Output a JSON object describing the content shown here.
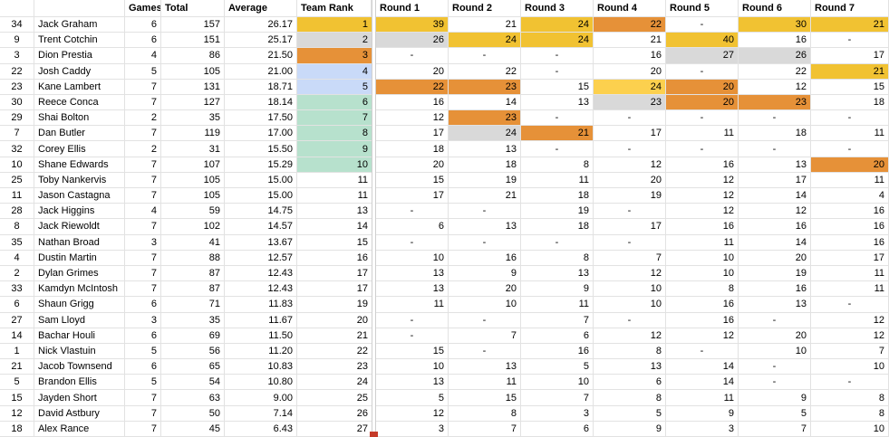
{
  "colors": {
    "gold": "#f1c232",
    "silver": "#d9d9d9",
    "bronze": "#e69138",
    "yellow": "#fcd04e",
    "blue": "#c9daf8",
    "green": "#b7e1cd"
  },
  "headers": [
    "",
    "",
    "Games",
    "Total",
    "Average",
    "Team Rank",
    "Round 1",
    "Round 2",
    "Round 3",
    "Round 4",
    "Round 5",
    "Round 6",
    "Round 7"
  ],
  "rows": [
    {
      "num": "34",
      "name": "Jack Graham",
      "games": "6",
      "total": "157",
      "avg": "26.17",
      "rank": "1",
      "rank_color": "gold",
      "rounds": [
        [
          "39",
          "gold"
        ],
        [
          "21",
          ""
        ],
        [
          "24",
          "gold"
        ],
        [
          "22",
          "bronze"
        ],
        [
          "-",
          ""
        ],
        [
          "30",
          "gold"
        ],
        [
          "21",
          "gold"
        ]
      ]
    },
    {
      "num": "9",
      "name": "Trent Cotchin",
      "games": "6",
      "total": "151",
      "avg": "25.17",
      "rank": "2",
      "rank_color": "silver",
      "rounds": [
        [
          "26",
          "silver"
        ],
        [
          "24",
          "gold"
        ],
        [
          "24",
          "gold"
        ],
        [
          "21",
          ""
        ],
        [
          "40",
          "gold"
        ],
        [
          "16",
          ""
        ],
        [
          "-",
          ""
        ]
      ]
    },
    {
      "num": "3",
      "name": "Dion Prestia",
      "games": "4",
      "total": "86",
      "avg": "21.50",
      "rank": "3",
      "rank_color": "bronze",
      "rounds": [
        [
          "-",
          ""
        ],
        [
          "-",
          ""
        ],
        [
          "-",
          ""
        ],
        [
          "16",
          ""
        ],
        [
          "27",
          "silver"
        ],
        [
          "26",
          "silver"
        ],
        [
          "17",
          ""
        ]
      ]
    },
    {
      "num": "22",
      "name": "Josh Caddy",
      "games": "5",
      "total": "105",
      "avg": "21.00",
      "rank": "4",
      "rank_color": "blue",
      "rounds": [
        [
          "20",
          ""
        ],
        [
          "22",
          ""
        ],
        [
          "-",
          ""
        ],
        [
          "20",
          ""
        ],
        [
          "-",
          ""
        ],
        [
          "22",
          ""
        ],
        [
          "21",
          "gold"
        ]
      ]
    },
    {
      "num": "23",
      "name": "Kane Lambert",
      "games": "7",
      "total": "131",
      "avg": "18.71",
      "rank": "5",
      "rank_color": "blue",
      "rounds": [
        [
          "22",
          "bronze"
        ],
        [
          "23",
          "bronze"
        ],
        [
          "15",
          ""
        ],
        [
          "24",
          "yellow"
        ],
        [
          "20",
          "bronze"
        ],
        [
          "12",
          ""
        ],
        [
          "15",
          ""
        ]
      ]
    },
    {
      "num": "30",
      "name": "Reece Conca",
      "games": "7",
      "total": "127",
      "avg": "18.14",
      "rank": "6",
      "rank_color": "green",
      "rounds": [
        [
          "16",
          ""
        ],
        [
          "14",
          ""
        ],
        [
          "13",
          ""
        ],
        [
          "23",
          "silver"
        ],
        [
          "20",
          "bronze"
        ],
        [
          "23",
          "bronze"
        ],
        [
          "18",
          ""
        ]
      ]
    },
    {
      "num": "29",
      "name": "Shai Bolton",
      "games": "2",
      "total": "35",
      "avg": "17.50",
      "rank": "7",
      "rank_color": "green",
      "rounds": [
        [
          "12",
          ""
        ],
        [
          "23",
          "bronze"
        ],
        [
          "-",
          ""
        ],
        [
          "-",
          ""
        ],
        [
          "-",
          ""
        ],
        [
          "-",
          ""
        ],
        [
          "-",
          ""
        ]
      ]
    },
    {
      "num": "7",
      "name": "Dan Butler",
      "games": "7",
      "total": "119",
      "avg": "17.00",
      "rank": "8",
      "rank_color": "green",
      "rounds": [
        [
          "17",
          ""
        ],
        [
          "24",
          "silver"
        ],
        [
          "21",
          "bronze"
        ],
        [
          "17",
          ""
        ],
        [
          "11",
          ""
        ],
        [
          "18",
          ""
        ],
        [
          "11",
          ""
        ]
      ]
    },
    {
      "num": "32",
      "name": "Corey Ellis",
      "games": "2",
      "total": "31",
      "avg": "15.50",
      "rank": "9",
      "rank_color": "green",
      "rounds": [
        [
          "18",
          ""
        ],
        [
          "13",
          ""
        ],
        [
          "-",
          ""
        ],
        [
          "-",
          ""
        ],
        [
          "-",
          ""
        ],
        [
          "-",
          ""
        ],
        [
          "-",
          ""
        ]
      ]
    },
    {
      "num": "10",
      "name": "Shane Edwards",
      "games": "7",
      "total": "107",
      "avg": "15.29",
      "rank": "10",
      "rank_color": "green",
      "rounds": [
        [
          "20",
          ""
        ],
        [
          "18",
          ""
        ],
        [
          "8",
          ""
        ],
        [
          "12",
          ""
        ],
        [
          "16",
          ""
        ],
        [
          "13",
          ""
        ],
        [
          "20",
          "bronze"
        ]
      ]
    },
    {
      "num": "25",
      "name": "Toby Nankervis",
      "games": "7",
      "total": "105",
      "avg": "15.00",
      "rank": "11",
      "rank_color": "",
      "rounds": [
        [
          "15",
          ""
        ],
        [
          "19",
          ""
        ],
        [
          "11",
          ""
        ],
        [
          "20",
          ""
        ],
        [
          "12",
          ""
        ],
        [
          "17",
          ""
        ],
        [
          "11",
          ""
        ]
      ]
    },
    {
      "num": "11",
      "name": "Jason Castagna",
      "games": "7",
      "total": "105",
      "avg": "15.00",
      "rank": "11",
      "rank_color": "",
      "rounds": [
        [
          "17",
          ""
        ],
        [
          "21",
          ""
        ],
        [
          "18",
          ""
        ],
        [
          "19",
          ""
        ],
        [
          "12",
          ""
        ],
        [
          "14",
          ""
        ],
        [
          "4",
          ""
        ]
      ]
    },
    {
      "num": "28",
      "name": "Jack Higgins",
      "games": "4",
      "total": "59",
      "avg": "14.75",
      "rank": "13",
      "rank_color": "",
      "rounds": [
        [
          "-",
          ""
        ],
        [
          "-",
          ""
        ],
        [
          "19",
          ""
        ],
        [
          "-",
          ""
        ],
        [
          "12",
          ""
        ],
        [
          "12",
          ""
        ],
        [
          "16",
          ""
        ]
      ]
    },
    {
      "num": "8",
      "name": "Jack Riewoldt",
      "games": "7",
      "total": "102",
      "avg": "14.57",
      "rank": "14",
      "rank_color": "",
      "rounds": [
        [
          "6",
          ""
        ],
        [
          "13",
          ""
        ],
        [
          "18",
          ""
        ],
        [
          "17",
          ""
        ],
        [
          "16",
          ""
        ],
        [
          "16",
          ""
        ],
        [
          "16",
          ""
        ]
      ]
    },
    {
      "num": "35",
      "name": "Nathan Broad",
      "games": "3",
      "total": "41",
      "avg": "13.67",
      "rank": "15",
      "rank_color": "",
      "rounds": [
        [
          "-",
          ""
        ],
        [
          "-",
          ""
        ],
        [
          "-",
          ""
        ],
        [
          "-",
          ""
        ],
        [
          "11",
          ""
        ],
        [
          "14",
          ""
        ],
        [
          "16",
          ""
        ]
      ]
    },
    {
      "num": "4",
      "name": "Dustin Martin",
      "games": "7",
      "total": "88",
      "avg": "12.57",
      "rank": "16",
      "rank_color": "",
      "rounds": [
        [
          "10",
          ""
        ],
        [
          "16",
          ""
        ],
        [
          "8",
          ""
        ],
        [
          "7",
          ""
        ],
        [
          "10",
          ""
        ],
        [
          "20",
          ""
        ],
        [
          "17",
          ""
        ]
      ]
    },
    {
      "num": "2",
      "name": "Dylan Grimes",
      "games": "7",
      "total": "87",
      "avg": "12.43",
      "rank": "17",
      "rank_color": "",
      "rounds": [
        [
          "13",
          ""
        ],
        [
          "9",
          ""
        ],
        [
          "13",
          ""
        ],
        [
          "12",
          ""
        ],
        [
          "10",
          ""
        ],
        [
          "19",
          ""
        ],
        [
          "11",
          ""
        ]
      ]
    },
    {
      "num": "33",
      "name": "Kamdyn McIntosh",
      "games": "7",
      "total": "87",
      "avg": "12.43",
      "rank": "17",
      "rank_color": "",
      "rounds": [
        [
          "13",
          ""
        ],
        [
          "20",
          ""
        ],
        [
          "9",
          ""
        ],
        [
          "10",
          ""
        ],
        [
          "8",
          ""
        ],
        [
          "16",
          ""
        ],
        [
          "11",
          ""
        ]
      ]
    },
    {
      "num": "6",
      "name": "Shaun Grigg",
      "games": "6",
      "total": "71",
      "avg": "11.83",
      "rank": "19",
      "rank_color": "",
      "rounds": [
        [
          "11",
          ""
        ],
        [
          "10",
          ""
        ],
        [
          "11",
          ""
        ],
        [
          "10",
          ""
        ],
        [
          "16",
          ""
        ],
        [
          "13",
          ""
        ],
        [
          "-",
          ""
        ]
      ]
    },
    {
      "num": "27",
      "name": "Sam Lloyd",
      "games": "3",
      "total": "35",
      "avg": "11.67",
      "rank": "20",
      "rank_color": "",
      "rounds": [
        [
          "-",
          ""
        ],
        [
          "-",
          ""
        ],
        [
          "7",
          ""
        ],
        [
          "-",
          ""
        ],
        [
          "16",
          ""
        ],
        [
          "-",
          ""
        ],
        [
          "12",
          ""
        ]
      ]
    },
    {
      "num": "14",
      "name": "Bachar Houli",
      "games": "6",
      "total": "69",
      "avg": "11.50",
      "rank": "21",
      "rank_color": "",
      "rounds": [
        [
          "-",
          ""
        ],
        [
          "7",
          ""
        ],
        [
          "6",
          ""
        ],
        [
          "12",
          ""
        ],
        [
          "12",
          ""
        ],
        [
          "20",
          ""
        ],
        [
          "12",
          ""
        ]
      ]
    },
    {
      "num": "1",
      "name": "Nick Vlastuin",
      "games": "5",
      "total": "56",
      "avg": "11.20",
      "rank": "22",
      "rank_color": "",
      "rounds": [
        [
          "15",
          ""
        ],
        [
          "-",
          ""
        ],
        [
          "16",
          ""
        ],
        [
          "8",
          ""
        ],
        [
          "-",
          ""
        ],
        [
          "10",
          ""
        ],
        [
          "7",
          ""
        ]
      ]
    },
    {
      "num": "21",
      "name": "Jacob Townsend",
      "games": "6",
      "total": "65",
      "avg": "10.83",
      "rank": "23",
      "rank_color": "",
      "rounds": [
        [
          "10",
          ""
        ],
        [
          "13",
          ""
        ],
        [
          "5",
          ""
        ],
        [
          "13",
          ""
        ],
        [
          "14",
          ""
        ],
        [
          "-",
          ""
        ],
        [
          "10",
          ""
        ]
      ]
    },
    {
      "num": "5",
      "name": "Brandon Ellis",
      "games": "5",
      "total": "54",
      "avg": "10.80",
      "rank": "24",
      "rank_color": "",
      "rounds": [
        [
          "13",
          ""
        ],
        [
          "11",
          ""
        ],
        [
          "10",
          ""
        ],
        [
          "6",
          ""
        ],
        [
          "14",
          ""
        ],
        [
          "-",
          ""
        ],
        [
          "-",
          ""
        ]
      ]
    },
    {
      "num": "15",
      "name": "Jayden Short",
      "games": "7",
      "total": "63",
      "avg": "9.00",
      "rank": "25",
      "rank_color": "",
      "rounds": [
        [
          "5",
          ""
        ],
        [
          "15",
          ""
        ],
        [
          "7",
          ""
        ],
        [
          "8",
          ""
        ],
        [
          "11",
          ""
        ],
        [
          "9",
          ""
        ],
        [
          "8",
          ""
        ]
      ]
    },
    {
      "num": "12",
      "name": "David Astbury",
      "games": "7",
      "total": "50",
      "avg": "7.14",
      "rank": "26",
      "rank_color": "",
      "rounds": [
        [
          "12",
          ""
        ],
        [
          "8",
          ""
        ],
        [
          "3",
          ""
        ],
        [
          "5",
          ""
        ],
        [
          "9",
          ""
        ],
        [
          "5",
          ""
        ],
        [
          "8",
          ""
        ]
      ]
    },
    {
      "num": "18",
      "name": "Alex Rance",
      "games": "7",
      "total": "45",
      "avg": "6.43",
      "rank": "27",
      "rank_color": "",
      "rounds": [
        [
          "3",
          ""
        ],
        [
          "7",
          ""
        ],
        [
          "6",
          ""
        ],
        [
          "9",
          ""
        ],
        [
          "3",
          ""
        ],
        [
          "7",
          ""
        ],
        [
          "10",
          ""
        ]
      ]
    }
  ]
}
